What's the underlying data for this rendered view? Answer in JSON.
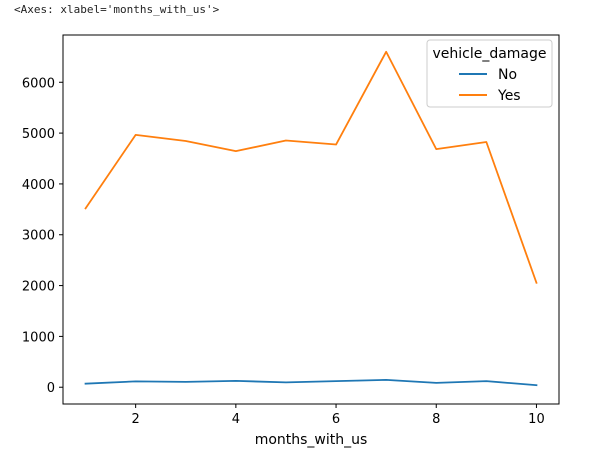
{
  "output_repr": "<Axes: xlabel='months_with_us'>",
  "chart_data": {
    "type": "line",
    "xlabel": "months_with_us",
    "ylabel": "",
    "x": [
      1,
      2,
      3,
      4,
      5,
      6,
      7,
      8,
      9,
      10
    ],
    "xlim": [
      0.55,
      10.45
    ],
    "ylim": [
      -330,
      6930
    ],
    "xticks": [
      2,
      4,
      6,
      8,
      10
    ],
    "yticks": [
      0,
      1000,
      2000,
      3000,
      4000,
      5000,
      6000
    ],
    "grid": false,
    "legend": {
      "title": "vehicle_damage",
      "placement": "top-right"
    },
    "series": [
      {
        "name": "No",
        "color": "#1f77b4",
        "values": [
          70,
          115,
          105,
          125,
          95,
          120,
          145,
          85,
          120,
          40
        ]
      },
      {
        "name": "Yes",
        "color": "#ff7f0e",
        "values": [
          3520,
          4965,
          4845,
          4645,
          4855,
          4775,
          6600,
          4685,
          4825,
          2055
        ]
      }
    ]
  }
}
